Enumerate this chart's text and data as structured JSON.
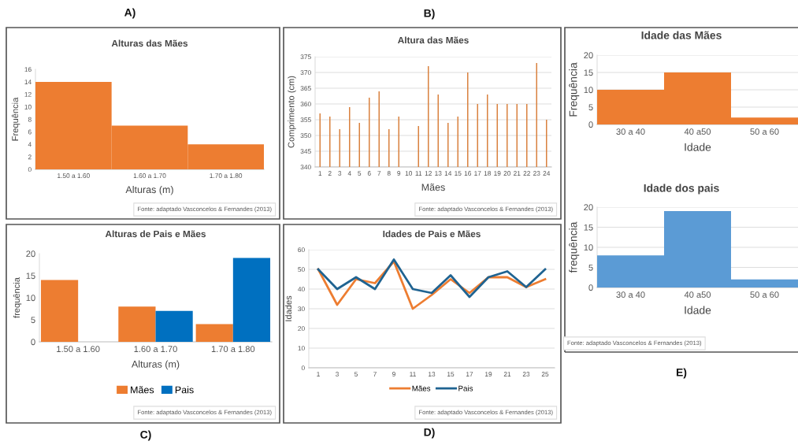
{
  "chart_data": [
    {
      "type": "bar",
      "title": "Alturas das Mães",
      "xlabel": "Alturas (m)",
      "ylabel": "Frequência",
      "categories": [
        "1.50 a 1.60",
        "1.60 a 1.70",
        "1.70 a 1.80"
      ],
      "values": [
        14,
        7,
        4
      ],
      "color": "#ed7d31",
      "ylim": [
        0,
        16
      ],
      "yticks": [
        0,
        2,
        4,
        6,
        8,
        10,
        12,
        14,
        16
      ],
      "annotations": [
        "A)",
        "Fonte: adaptado Vasconcelos & Fernandes (2013)"
      ]
    },
    {
      "type": "bar",
      "title": "Altura das Mães",
      "xlabel": "Mães",
      "ylabel": "Comprimento (cm)",
      "categories": [
        "1",
        "2",
        "3",
        "4",
        "5",
        "6",
        "7",
        "8",
        "9",
        "10",
        "11",
        "12",
        "13",
        "14",
        "15",
        "16",
        "17",
        "18",
        "19",
        "20",
        "21",
        "22",
        "23",
        "24"
      ],
      "values": [
        357,
        356,
        352,
        359,
        354,
        362,
        364,
        352,
        356,
        null,
        353,
        372,
        363,
        354,
        356,
        370,
        360,
        363,
        360,
        360,
        360,
        360,
        373,
        355
      ],
      "color": "#d9813f",
      "ylim": [
        340,
        375
      ],
      "yticks": [
        340,
        345,
        350,
        355,
        360,
        365,
        370,
        375
      ],
      "grid": "y",
      "annotations": [
        "B)",
        "Fonte: adaptado Vasconcelos & Fernandes (2013)"
      ]
    },
    {
      "type": "bar",
      "title": "Alturas de Pais e Mães",
      "xlabel": "Alturas (m)",
      "ylabel": "frequência",
      "categories": [
        "1.50 a 1.60",
        "1.60 a 1.70",
        "1.70 a 1.80"
      ],
      "series": [
        {
          "name": "Mães",
          "color": "#ed7d31",
          "values": [
            14,
            8,
            4
          ]
        },
        {
          "name": "Pais",
          "color": "#0070c0",
          "values": [
            null,
            7,
            19
          ]
        }
      ],
      "ylim": [
        0,
        20
      ],
      "yticks": [
        0,
        5,
        10,
        15,
        20
      ],
      "legend": "bottom",
      "annotations": [
        "C)",
        "Fonte: adaptado Vasconcelos & Fernandes (2013)"
      ]
    },
    {
      "type": "line",
      "title": "Idades de Pais e Mães",
      "ylabel": "Idades",
      "categories": [
        "1",
        "3",
        "5",
        "7",
        "9",
        "11",
        "13",
        "15",
        "17",
        "19",
        "21",
        "23",
        "25"
      ],
      "series": [
        {
          "name": "Mães",
          "color": "#ed7d31",
          "values": [
            50,
            32,
            45,
            43,
            54,
            30,
            37,
            45,
            38,
            46,
            46,
            41,
            45
          ]
        },
        {
          "name": "Pais",
          "color": "#1f6391",
          "values": [
            50,
            40,
            46,
            40,
            55,
            40,
            38,
            47,
            36,
            46,
            49,
            41,
            50
          ]
        }
      ],
      "ylim": [
        0,
        60
      ],
      "yticks": [
        0,
        10,
        20,
        30,
        40,
        50,
        60
      ],
      "grid": "y",
      "legend": "bottom",
      "marker": "none",
      "line_style": "solid",
      "annotations": [
        "D)",
        "Fonte: adaptado Vasconcelos & Fernandes (2013)"
      ]
    },
    {
      "type": "bar",
      "title": "Idade das Mães",
      "xlabel": "Idade",
      "ylabel": "Frequência",
      "categories": [
        "30 a 40",
        "40 a50",
        "50 a 60"
      ],
      "values": [
        10,
        15,
        2
      ],
      "color": "#ed7d31",
      "ylim": [
        0,
        20
      ],
      "yticks": [
        0,
        5,
        10,
        15,
        20
      ],
      "grid": "y"
    },
    {
      "type": "bar",
      "title": "Idade dos pais",
      "xlabel": "Idade",
      "ylabel": "frequência",
      "categories": [
        "30 a 40",
        "40 a50",
        "50 a 60"
      ],
      "values": [
        8,
        19,
        2
      ],
      "color": "#5b9bd5",
      "ylim": [
        0,
        20
      ],
      "yticks": [
        0,
        5,
        10,
        15,
        20
      ],
      "grid": "y",
      "annotations": [
        "Fonte: adaptado Vasconcelos & Fernandes (2013)",
        "E)"
      ]
    }
  ]
}
